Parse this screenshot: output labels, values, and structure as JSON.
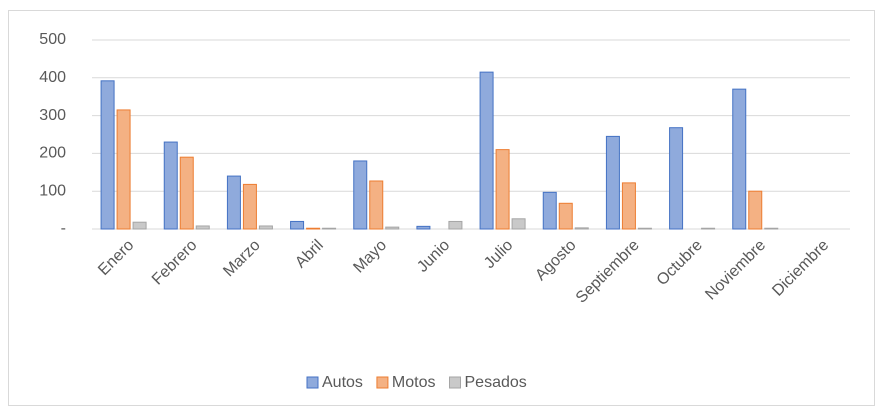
{
  "chart_data": {
    "type": "bar",
    "categories": [
      "Enero",
      "Febrero",
      "Marzo",
      "Abril",
      "Mayo",
      "Junio",
      "Julio",
      "Agosto",
      "Septiembre",
      "Octubre",
      "Noviembre",
      "Diciembre"
    ],
    "series": [
      {
        "name": "Autos",
        "color": "#8faadc",
        "edgecolor": "#4472c4",
        "values": [
          392,
          230,
          140,
          20,
          180,
          7,
          415,
          97,
          245,
          268,
          370,
          0
        ]
      },
      {
        "name": "Motos",
        "color": "#f4b183",
        "edgecolor": "#ed7d31",
        "values": [
          315,
          190,
          118,
          2,
          127,
          0,
          210,
          68,
          122,
          0,
          100,
          0
        ]
      },
      {
        "name": "Pesados",
        "color": "#c9c9c9",
        "edgecolor": "#a5a5a5",
        "values": [
          18,
          8,
          8,
          2,
          5,
          20,
          27,
          3,
          2,
          2,
          2,
          0
        ]
      }
    ],
    "ylim": [
      0,
      500
    ],
    "yticks": [
      {
        "value": 0,
        "label": "-"
      },
      100,
      200,
      300,
      400,
      500
    ],
    "grid": true,
    "legend": "bottom"
  }
}
